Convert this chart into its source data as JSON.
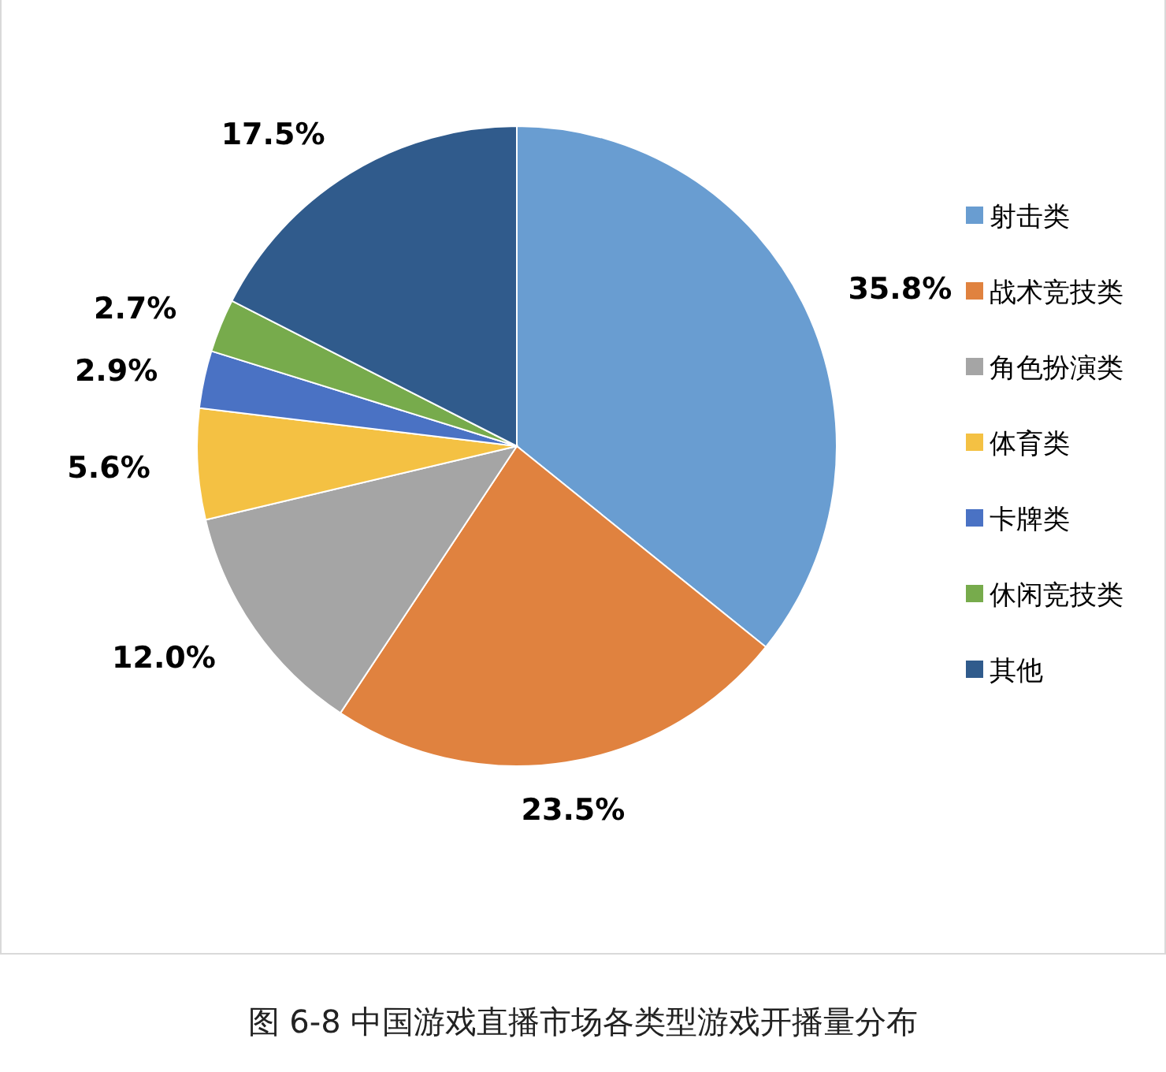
{
  "chart_data": {
    "type": "pie",
    "title": "图 6-8  中国游戏直播市场各类型游戏开播量分布",
    "categories": [
      "射击类",
      "战术竞技类",
      "角色扮演类",
      "体育类",
      "卡牌类",
      "休闲竞技类",
      "其他"
    ],
    "values": [
      35.8,
      23.5,
      12.0,
      5.6,
      2.9,
      2.7,
      17.5
    ],
    "colors": [
      "#699dd1",
      "#e0823f",
      "#a5a5a5",
      "#f4c143",
      "#4a72c4",
      "#77ab4c",
      "#305b8c"
    ],
    "value_labels": [
      "35.8%",
      "23.5%",
      "12.0%",
      "5.6%",
      "2.9%",
      "2.7%",
      "17.5%"
    ],
    "legend": "right"
  }
}
